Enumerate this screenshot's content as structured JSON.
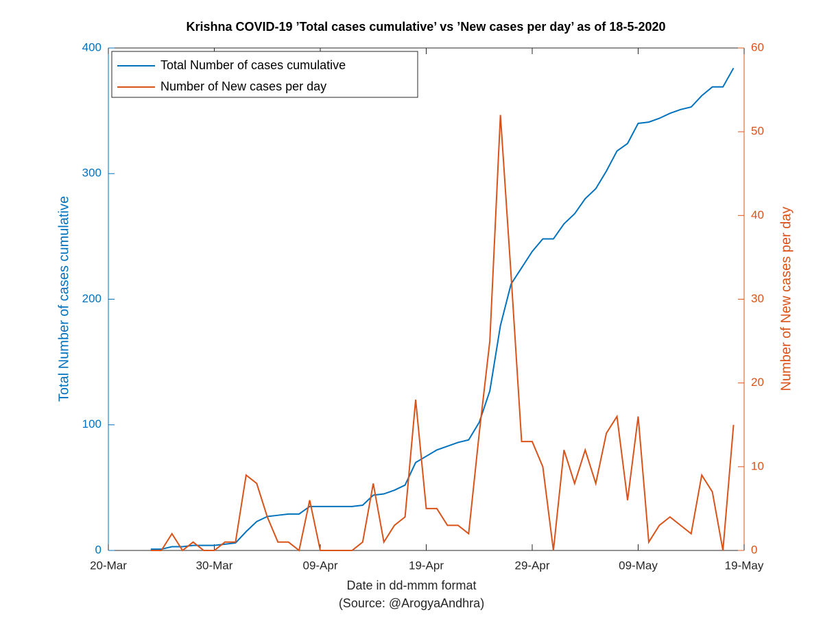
{
  "chart_data": {
    "type": "line",
    "title": "Krishna COVID-19 ’Total cases cumulative’ vs ’New cases per day’ as of 18-5-2020",
    "xlabel": "Date in dd-mmm format",
    "source": "(Source: @ArogyaAndhra)",
    "ylabel": "Total Number of cases cumulative",
    "y2label": "Number of New cases per day",
    "x": [
      "24-Mar",
      "25-Mar",
      "26-Mar",
      "27-Mar",
      "28-Mar",
      "29-Mar",
      "30-Mar",
      "31-Mar",
      "01-Apr",
      "02-Apr",
      "03-Apr",
      "04-Apr",
      "05-Apr",
      "06-Apr",
      "07-Apr",
      "08-Apr",
      "09-Apr",
      "10-Apr",
      "11-Apr",
      "12-Apr",
      "13-Apr",
      "14-Apr",
      "15-Apr",
      "16-Apr",
      "17-Apr",
      "18-Apr",
      "19-Apr",
      "20-Apr",
      "21-Apr",
      "22-Apr",
      "23-Apr",
      "24-Apr",
      "25-Apr",
      "26-Apr",
      "27-Apr",
      "28-Apr",
      "29-Apr",
      "30-Apr",
      "01-May",
      "02-May",
      "03-May",
      "04-May",
      "05-May",
      "06-May",
      "07-May",
      "08-May",
      "09-May",
      "10-May",
      "11-May",
      "12-May",
      "13-May",
      "14-May",
      "15-May",
      "16-May",
      "17-May",
      "18-May"
    ],
    "xlim": [
      "20-Mar",
      "19-May"
    ],
    "xticks": [
      "20-Mar",
      "30-Mar",
      "09-Apr",
      "19-Apr",
      "29-Apr",
      "09-May",
      "19-May"
    ],
    "ylim": [
      0,
      400
    ],
    "yticks": [
      0,
      100,
      200,
      300,
      400
    ],
    "y2lim": [
      0,
      60
    ],
    "y2ticks": [
      0,
      10,
      20,
      30,
      40,
      50,
      60
    ],
    "legend": "upper left",
    "series": [
      {
        "name": "Total Number of cases cumulative",
        "color": "#0072bd",
        "values": [
          1,
          1,
          3,
          3,
          4,
          4,
          4,
          5,
          6,
          15,
          23,
          27,
          28,
          29,
          29,
          35,
          35,
          35,
          35,
          35,
          36,
          44,
          45,
          48,
          52,
          70,
          75,
          80,
          83,
          86,
          88,
          102,
          127,
          179,
          212,
          225,
          238,
          248,
          248,
          260,
          268,
          280,
          288,
          302,
          318,
          324,
          340,
          341,
          344,
          348,
          351,
          353,
          362,
          369,
          369,
          384
        ]
      },
      {
        "name": "Number of New cases per day",
        "color": "#d95319",
        "axis": "y2",
        "values": [
          0,
          0,
          2,
          0,
          1,
          0,
          0,
          1,
          1,
          9,
          8,
          4,
          1,
          1,
          0,
          6,
          0,
          0,
          0,
          0,
          1,
          8,
          1,
          3,
          4,
          18,
          5,
          5,
          3,
          3,
          2,
          14,
          25,
          52,
          33,
          13,
          13,
          10,
          0,
          12,
          8,
          12,
          8,
          14,
          16,
          6,
          16,
          1,
          3,
          4,
          3,
          2,
          9,
          7,
          0,
          15
        ]
      }
    ]
  }
}
